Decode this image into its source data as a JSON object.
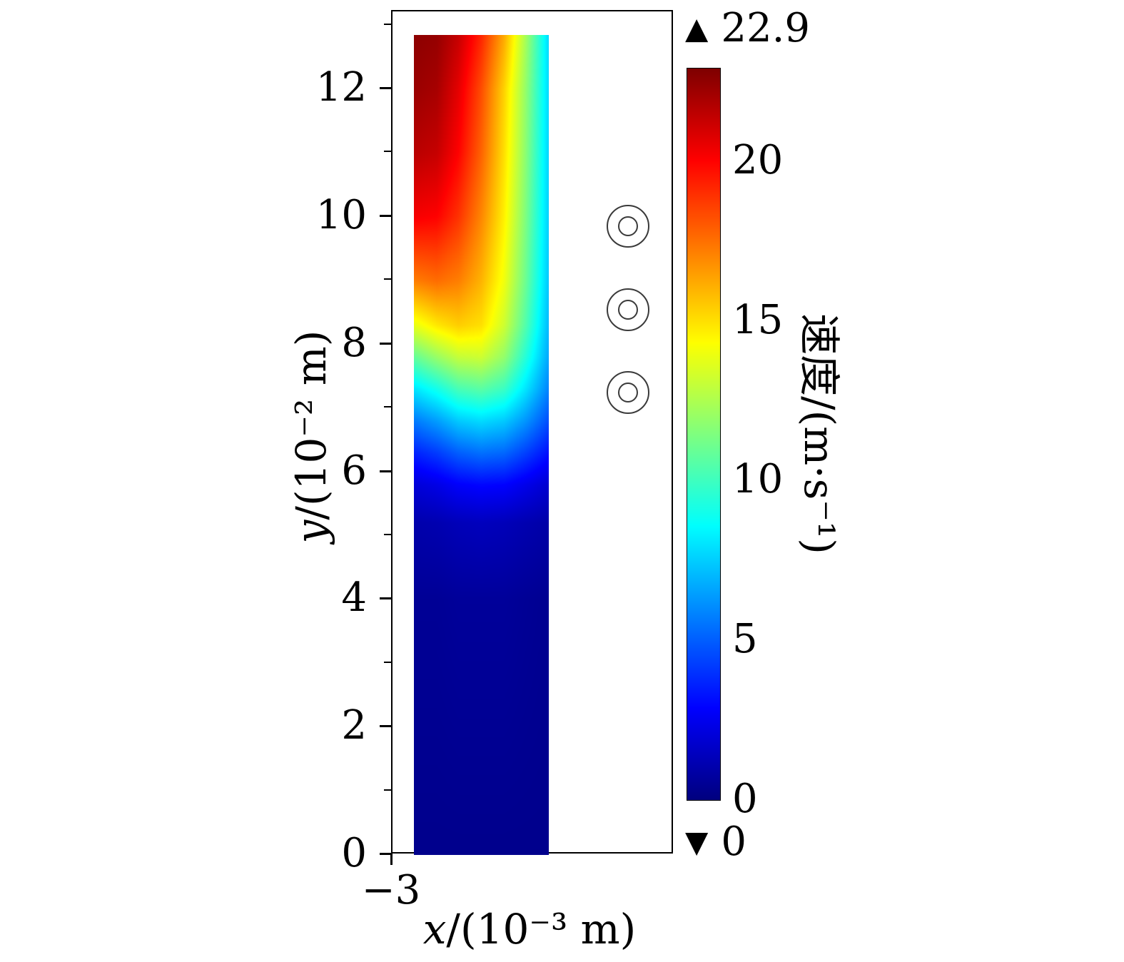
{
  "chart_data": {
    "type": "heatmap",
    "title": "",
    "colormap": "jet",
    "value_range": [
      0,
      22.9
    ],
    "axes": {
      "x_range": [
        -3,
        1
      ],
      "y_range": [
        0,
        13.22
      ],
      "x_ticks": [
        {
          "value": -3,
          "label": "−3"
        }
      ],
      "y_ticks": [
        {
          "value": 0,
          "label": "0"
        },
        {
          "value": 2,
          "label": "2"
        },
        {
          "value": 4,
          "label": "4"
        },
        {
          "value": 6,
          "label": "6"
        },
        {
          "value": 8,
          "label": "8"
        },
        {
          "value": 10,
          "label": "10"
        },
        {
          "value": 12,
          "label": "12"
        }
      ],
      "y_minor_ticks": [
        1,
        3,
        5,
        7,
        9,
        11,
        13
      ],
      "xlabel": {
        "variable": "x",
        "rest": "/(10⁻³ m)",
        "full": "x/(10⁻³ m)"
      },
      "ylabel": {
        "variable": "y",
        "rest": "/(10⁻² m)",
        "full": "y/(10⁻² m)"
      }
    },
    "surface": {
      "x_extent": [
        -2.7,
        -0.78
      ],
      "y_extent": [
        0,
        12.85
      ],
      "col_fracs": [
        0,
        0.17,
        0.33,
        0.5,
        0.67,
        0.83,
        1
      ],
      "rows": [
        {
          "y": 0,
          "values": [
            0.3,
            0.3,
            0.3,
            0.3,
            0.3,
            0.3,
            0.3
          ]
        },
        {
          "y": 4,
          "values": [
            0.5,
            0.5,
            0.6,
            0.6,
            0.6,
            0.5,
            0.4
          ]
        },
        {
          "y": 5.2,
          "values": [
            1.0,
            1.1,
            1.3,
            1.4,
            1.3,
            1.1,
            0.9
          ]
        },
        {
          "y": 5.8,
          "values": [
            2.0,
            2.3,
            2.8,
            3.0,
            2.9,
            2.4,
            1.8
          ]
        },
        {
          "y": 6.3,
          "values": [
            3.6,
            4.2,
            5.0,
            5.4,
            5.2,
            4.3,
            3.2
          ]
        },
        {
          "y": 6.8,
          "values": [
            5.6,
            6.4,
            7.4,
            7.8,
            7.4,
            6.2,
            4.6
          ]
        },
        {
          "y": 7.3,
          "values": [
            8.0,
            9.0,
            10.2,
            10.6,
            9.9,
            8.0,
            5.8
          ]
        },
        {
          "y": 7.8,
          "values": [
            10.8,
            12.0,
            13.0,
            13.2,
            11.9,
            9.4,
            6.6
          ]
        },
        {
          "y": 8.3,
          "values": [
            13.8,
            14.8,
            15.4,
            15.0,
            13.2,
            10.4,
            7.0
          ]
        },
        {
          "y": 9.0,
          "values": [
            17.2,
            17.6,
            17.2,
            16.0,
            14.0,
            11.0,
            7.3
          ]
        },
        {
          "y": 10,
          "values": [
            20.2,
            20.0,
            18.9,
            17.0,
            14.6,
            11.4,
            7.5
          ]
        },
        {
          "y": 11,
          "values": [
            21.6,
            21.3,
            20.0,
            17.8,
            15.0,
            11.7,
            7.6
          ]
        },
        {
          "y": 12,
          "values": [
            22.3,
            22.0,
            20.6,
            18.3,
            15.3,
            11.9,
            7.7
          ]
        },
        {
          "y": 12.85,
          "values": [
            22.6,
            22.4,
            21.3,
            19.2,
            16.2,
            12.3,
            7.7
          ]
        }
      ]
    },
    "colorbar": {
      "label": "速度/(m·s⁻¹)",
      "range": [
        0,
        22.9
      ],
      "ticks": [
        {
          "value": 0,
          "label": "0"
        },
        {
          "value": 5,
          "label": "5"
        },
        {
          "value": 10,
          "label": "10"
        },
        {
          "value": 15,
          "label": "15"
        },
        {
          "value": 20,
          "label": "20"
        }
      ],
      "max": {
        "icon": "▲",
        "label": "22.9"
      },
      "min": {
        "icon": "▼",
        "label": "0"
      }
    },
    "markers": {
      "shape": "double-circle",
      "outer_radius_px": 30,
      "inner_radius_px": 14,
      "stroke": "#3a3a3a",
      "points": [
        {
          "x": 0.34,
          "y": 9.85
        },
        {
          "x": 0.34,
          "y": 8.55
        },
        {
          "x": 0.34,
          "y": 7.25
        }
      ]
    }
  }
}
